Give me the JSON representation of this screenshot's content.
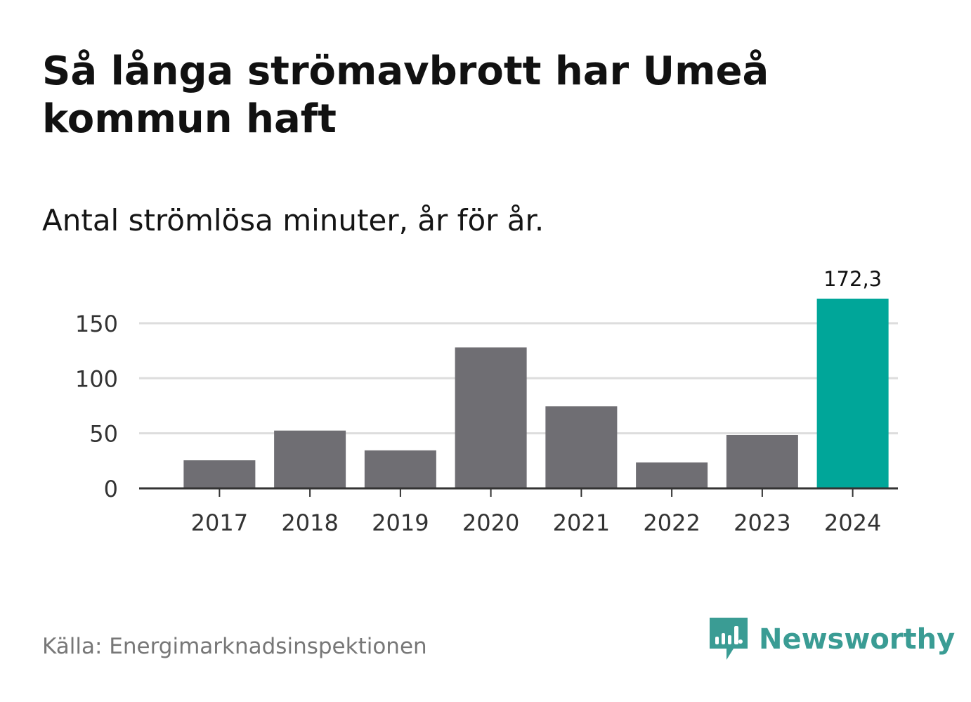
{
  "title": "Så långa strömavbrott har Umeå kommun haft",
  "subtitle": "Antal strömlösa minuter, år för år.",
  "source": "Källa: Energimarknadsinspektionen",
  "brand": {
    "name": "Newsworthy",
    "icon": "newsworthy-logo-icon",
    "color": "#3a9c94"
  },
  "colors": {
    "bar": "#6f6e73",
    "highlight": "#00a699",
    "grid": "#dddddd",
    "axis": "#333333"
  },
  "chart_data": {
    "type": "bar",
    "title": "Så långa strömavbrott har Umeå kommun haft",
    "subtitle": "Antal strömlösa minuter, år för år.",
    "xlabel": "",
    "ylabel": "",
    "categories": [
      "2017",
      "2018",
      "2019",
      "2020",
      "2021",
      "2022",
      "2023",
      "2024"
    ],
    "values": [
      25.5,
      52.5,
      34.5,
      128,
      74.5,
      23.5,
      48.5,
      172.3
    ],
    "highlight_index": 7,
    "data_labels": [
      {
        "index": 7,
        "text": "172,3"
      }
    ],
    "ylim": [
      0,
      172.3
    ],
    "yticks": [
      0,
      50,
      100,
      150
    ],
    "ytick_labels": [
      "0",
      "50",
      "100",
      "150"
    ],
    "grid": true,
    "legend": "none"
  }
}
